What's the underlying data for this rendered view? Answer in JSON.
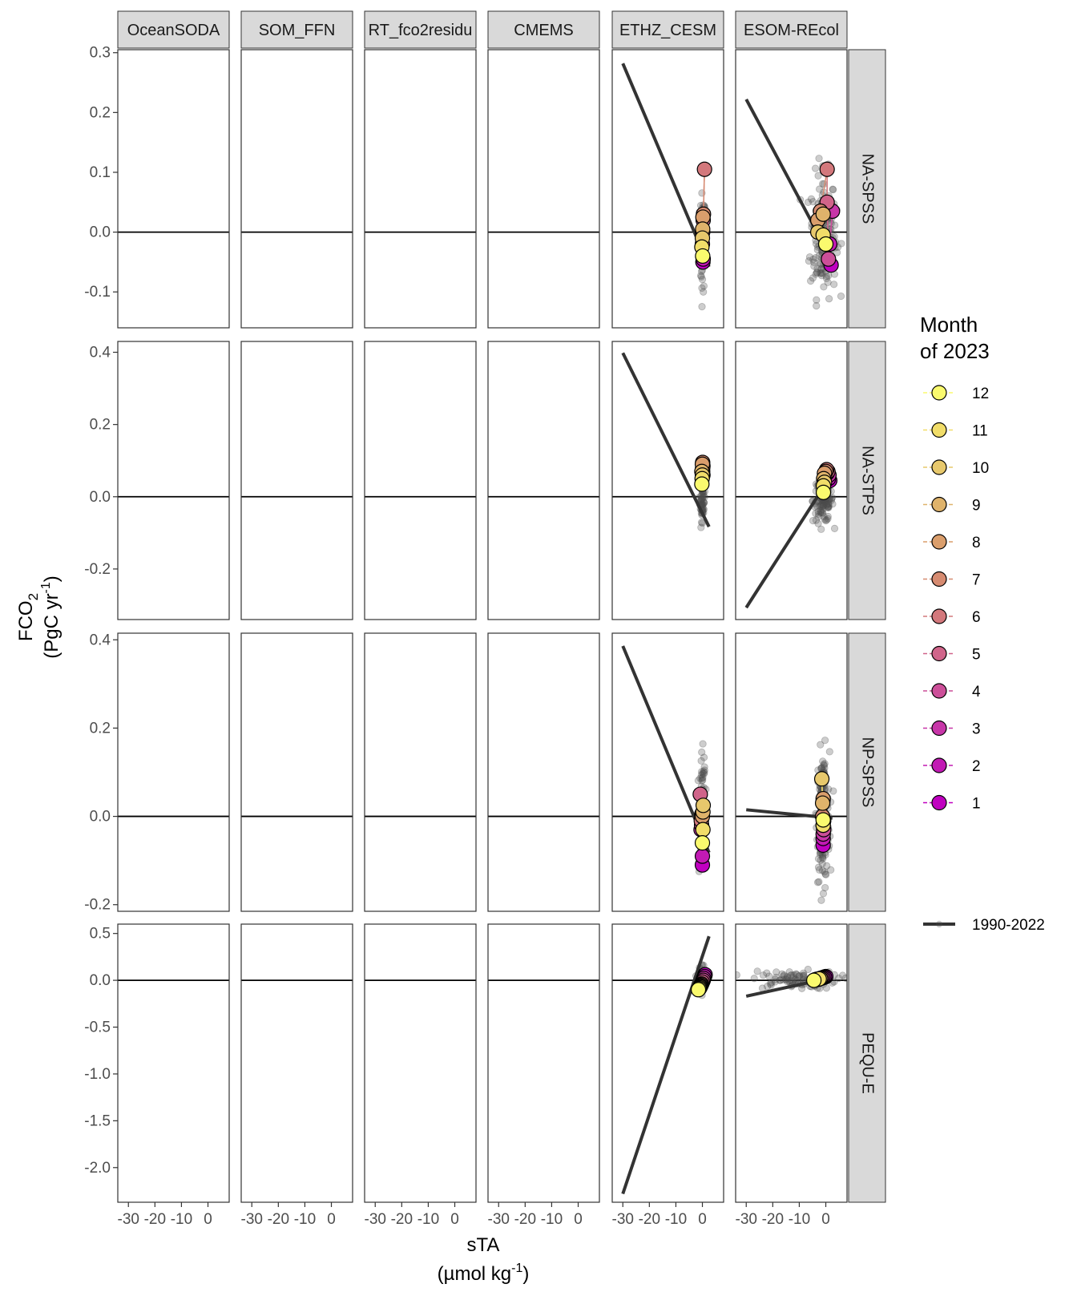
{
  "chart_data": {
    "type": "scatter",
    "facet_columns": [
      "OceanSODA",
      "SOM_FFN",
      "RT_fco2residu",
      "CMEMS",
      "ETHZ_CESM",
      "ESOM-REcol"
    ],
    "facet_rows": [
      "NA-SPSS",
      "NA-STPS",
      "NP-SPSS",
      "PEQU-E"
    ],
    "xlabel": "sTA",
    "xlabel_unit": "(µmol kg",
    "xlabel_unit_sup": "-1",
    "xlabel_unit_end": ")",
    "ylabel": "FCO",
    "ylabel_sub": "2",
    "ylabel_unit": "(PgC yr",
    "ylabel_unit_sup": "-1",
    "ylabel_unit_end": ")",
    "xlim": [
      -34,
      8
    ],
    "x_ticks": [
      -30,
      -20,
      -10,
      0
    ],
    "x_tick_labels": [
      "-30",
      "-20",
      "-10",
      "0"
    ],
    "rows": [
      {
        "ylim": [
          -0.16,
          0.305
        ],
        "y_ticks": [
          -0.1,
          0.0,
          0.1,
          0.2,
          0.3
        ],
        "y_tick_labels": [
          "-0.1",
          "0.0",
          "0.1",
          "0.2",
          "0.3"
        ]
      },
      {
        "ylim": [
          -0.34,
          0.43
        ],
        "y_ticks": [
          -0.2,
          0.0,
          0.2,
          0.4
        ],
        "y_tick_labels": [
          "-0.2",
          "0.0",
          "0.2",
          "0.4"
        ]
      },
      {
        "ylim": [
          -0.215,
          0.415
        ],
        "y_ticks": [
          -0.2,
          0.0,
          0.2,
          0.4
        ],
        "y_tick_labels": [
          "-0.2",
          "0.0",
          "0.2",
          "0.4"
        ]
      },
      {
        "ylim": [
          -2.37,
          0.6
        ],
        "y_ticks": [
          -2.0,
          -1.5,
          -1.0,
          -0.5,
          0.0,
          0.5
        ],
        "y_tick_labels": [
          "-2.0",
          "-1.5",
          "-1.0",
          "-0.5",
          "0.0",
          "0.5"
        ]
      }
    ],
    "legend": {
      "title_line1": "Month",
      "title_line2": "of 2023",
      "months": [
        12,
        11,
        10,
        9,
        8,
        7,
        6,
        5,
        4,
        3,
        2,
        1
      ],
      "month_labels": [
        "12",
        "11",
        "10",
        "9",
        "8",
        "7",
        "6",
        "5",
        "4",
        "3",
        "2",
        "1"
      ],
      "month_colors": {
        "1": "#c000c0",
        "2": "#c21ab4",
        "3": "#c736a8",
        "4": "#cc4f99",
        "5": "#d0648a",
        "6": "#d3787c",
        "7": "#d68b71",
        "8": "#da9e6c",
        "9": "#dfb36b",
        "10": "#e7c86c",
        "11": "#f1dd69",
        "12": "#fafa6e"
      },
      "baseline_label": "1990-2022",
      "placement": "right"
    },
    "colors": {
      "trend_line": "#333333",
      "hist_points": "#4d4d4d",
      "strip_fill": "#d9d9d9",
      "zero_line": "#000000"
    },
    "trend_lines": [
      {
        "row": 0,
        "col": 4,
        "x": [
          -30,
          2.5
        ],
        "y": [
          0.282,
          -0.058
        ]
      },
      {
        "row": 0,
        "col": 5,
        "x": [
          -30,
          2.5
        ],
        "y": [
          0.222,
          -0.048
        ]
      },
      {
        "row": 1,
        "col": 4,
        "x": [
          -30,
          2.5
        ],
        "y": [
          0.398,
          -0.083
        ]
      },
      {
        "row": 1,
        "col": 5,
        "x": [
          -30,
          2.5
        ],
        "y": [
          -0.307,
          0.065
        ]
      },
      {
        "row": 2,
        "col": 4,
        "x": [
          -30,
          2.5
        ],
        "y": [
          0.386,
          -0.082
        ]
      },
      {
        "row": 2,
        "col": 5,
        "x": [
          -30,
          2.5
        ],
        "y": [
          0.015,
          -0.004
        ]
      },
      {
        "row": 3,
        "col": 4,
        "x": [
          -30,
          2.5
        ],
        "y": [
          -2.28,
          0.47
        ]
      },
      {
        "row": 3,
        "col": 5,
        "x": [
          -30,
          2.5
        ],
        "y": [
          -0.17,
          0.03
        ]
      }
    ],
    "historical_points": [
      {
        "row": 0,
        "col": 4,
        "x_center": 0,
        "x_spread": 0.9,
        "y_min": -0.125,
        "y_max": 0.09,
        "count": 60
      },
      {
        "row": 0,
        "col": 5,
        "x_center": -1,
        "x_spread": 4.5,
        "y_min": -0.14,
        "y_max": 0.13,
        "count": 170
      },
      {
        "row": 1,
        "col": 4,
        "x_center": 0,
        "x_spread": 0.9,
        "y_min": -0.085,
        "y_max": 0.065,
        "count": 55
      },
      {
        "row": 1,
        "col": 5,
        "x_center": -1,
        "x_spread": 3.5,
        "y_min": -0.09,
        "y_max": 0.07,
        "count": 120
      },
      {
        "row": 2,
        "col": 4,
        "x_center": 0,
        "x_spread": 1.0,
        "y_min": -0.13,
        "y_max": 0.175,
        "count": 80
      },
      {
        "row": 2,
        "col": 5,
        "x_center": -1,
        "x_spread": 2.2,
        "y_min": -0.19,
        "y_max": 0.19,
        "count": 170
      },
      {
        "row": 3,
        "col": 4,
        "x_center": 0,
        "x_spread": 1.5,
        "y_min": -0.16,
        "y_max": 0.22,
        "count": 60
      },
      {
        "row": 3,
        "col": 5,
        "x_center": -12,
        "x_spread": 15,
        "y_min": -0.12,
        "y_max": 0.13,
        "count": 90
      }
    ],
    "points_2023": [
      {
        "row": 0,
        "col": 4,
        "points": [
          {
            "month": 1,
            "x": 0.2,
            "y": -0.05
          },
          {
            "month": 2,
            "x": 0.3,
            "y": -0.045
          },
          {
            "month": 3,
            "x": 0.0,
            "y": -0.02
          },
          {
            "month": 4,
            "x": 0.1,
            "y": 0.0
          },
          {
            "month": 5,
            "x": 0.3,
            "y": 0.02
          },
          {
            "month": 6,
            "x": 0.8,
            "y": 0.105
          },
          {
            "month": 7,
            "x": 0.4,
            "y": 0.03
          },
          {
            "month": 8,
            "x": 0.2,
            "y": 0.025
          },
          {
            "month": 9,
            "x": 0.1,
            "y": 0.005
          },
          {
            "month": 10,
            "x": 0.0,
            "y": -0.01
          },
          {
            "month": 11,
            "x": -0.2,
            "y": -0.025
          },
          {
            "month": 12,
            "x": 0.1,
            "y": -0.04
          }
        ]
      },
      {
        "row": 0,
        "col": 5,
        "points": [
          {
            "month": 1,
            "x": 2.0,
            "y": -0.055
          },
          {
            "month": 2,
            "x": 1.5,
            "y": -0.02
          },
          {
            "month": 3,
            "x": 2.5,
            "y": 0.035
          },
          {
            "month": 4,
            "x": 1.0,
            "y": -0.045
          },
          {
            "month": 5,
            "x": 0.5,
            "y": 0.05
          },
          {
            "month": 6,
            "x": 0.5,
            "y": 0.105
          },
          {
            "month": 7,
            "x": -2.0,
            "y": 0.035
          },
          {
            "month": 8,
            "x": -3.0,
            "y": 0.02
          },
          {
            "month": 9,
            "x": -1.0,
            "y": 0.03
          },
          {
            "month": 10,
            "x": -3.0,
            "y": 0.0
          },
          {
            "month": 11,
            "x": -1.0,
            "y": -0.005
          },
          {
            "month": 12,
            "x": 0.0,
            "y": -0.02
          }
        ]
      },
      {
        "row": 1,
        "col": 4,
        "points": [
          {
            "month": 1,
            "x": 0.0,
            "y": 0.055
          },
          {
            "month": 2,
            "x": 0.2,
            "y": 0.06
          },
          {
            "month": 3,
            "x": 0.1,
            "y": 0.07
          },
          {
            "month": 4,
            "x": 0.0,
            "y": 0.075
          },
          {
            "month": 5,
            "x": 0.1,
            "y": 0.08
          },
          {
            "month": 6,
            "x": 0.2,
            "y": 0.085
          },
          {
            "month": 7,
            "x": 0.1,
            "y": 0.095
          },
          {
            "month": 8,
            "x": 0.0,
            "y": 0.09
          },
          {
            "month": 9,
            "x": -0.2,
            "y": 0.07
          },
          {
            "month": 10,
            "x": 0.0,
            "y": 0.06
          },
          {
            "month": 11,
            "x": -0.1,
            "y": 0.05
          },
          {
            "month": 12,
            "x": -0.2,
            "y": 0.035
          }
        ]
      },
      {
        "row": 1,
        "col": 5,
        "points": [
          {
            "month": 1,
            "x": 1.5,
            "y": 0.045
          },
          {
            "month": 2,
            "x": 1.0,
            "y": 0.05
          },
          {
            "month": 3,
            "x": 1.2,
            "y": 0.06
          },
          {
            "month": 4,
            "x": 0.5,
            "y": 0.065
          },
          {
            "month": 5,
            "x": 0.8,
            "y": 0.07
          },
          {
            "month": 6,
            "x": 0.3,
            "y": 0.075
          },
          {
            "month": 7,
            "x": 0.0,
            "y": 0.07
          },
          {
            "month": 8,
            "x": -0.5,
            "y": 0.065
          },
          {
            "month": 9,
            "x": -0.8,
            "y": 0.05
          },
          {
            "month": 10,
            "x": -0.5,
            "y": 0.04
          },
          {
            "month": 11,
            "x": -0.9,
            "y": 0.03
          },
          {
            "month": 12,
            "x": -0.9,
            "y": 0.012
          }
        ]
      },
      {
        "row": 2,
        "col": 4,
        "points": [
          {
            "month": 1,
            "x": 0.0,
            "y": -0.11
          },
          {
            "month": 2,
            "x": 0.0,
            "y": -0.09
          },
          {
            "month": 3,
            "x": -0.5,
            "y": -0.03
          },
          {
            "month": 4,
            "x": -0.3,
            "y": -0.02
          },
          {
            "month": 5,
            "x": -0.8,
            "y": 0.05
          },
          {
            "month": 6,
            "x": -0.4,
            "y": -0.01
          },
          {
            "month": 7,
            "x": -0.2,
            "y": 0.005
          },
          {
            "month": 8,
            "x": 0.0,
            "y": 0.0
          },
          {
            "month": 9,
            "x": 0.2,
            "y": 0.01
          },
          {
            "month": 10,
            "x": 0.3,
            "y": 0.025
          },
          {
            "month": 11,
            "x": 0.2,
            "y": -0.03
          },
          {
            "month": 12,
            "x": 0.0,
            "y": -0.06
          }
        ]
      },
      {
        "row": 2,
        "col": 5,
        "points": [
          {
            "month": 1,
            "x": -1.0,
            "y": -0.065
          },
          {
            "month": 2,
            "x": -1.0,
            "y": -0.05
          },
          {
            "month": 3,
            "x": -1.0,
            "y": -0.04
          },
          {
            "month": 4,
            "x": -0.8,
            "y": -0.03
          },
          {
            "month": 5,
            "x": -1.0,
            "y": -0.02
          },
          {
            "month": 6,
            "x": -0.8,
            "y": -0.01
          },
          {
            "month": 7,
            "x": -1.2,
            "y": 0.0
          },
          {
            "month": 8,
            "x": -1.0,
            "y": 0.04
          },
          {
            "month": 9,
            "x": -1.2,
            "y": 0.03
          },
          {
            "month": 10,
            "x": -1.5,
            "y": 0.085
          },
          {
            "month": 11,
            "x": -1.0,
            "y": -0.02
          },
          {
            "month": 12,
            "x": -1.0,
            "y": -0.008
          }
        ]
      },
      {
        "row": 3,
        "col": 4,
        "points": [
          {
            "month": 1,
            "x": 1.0,
            "y": 0.06
          },
          {
            "month": 2,
            "x": 0.8,
            "y": 0.04
          },
          {
            "month": 3,
            "x": 0.5,
            "y": 0.02
          },
          {
            "month": 4,
            "x": 0.3,
            "y": 0.0
          },
          {
            "month": 5,
            "x": 0.0,
            "y": -0.02
          },
          {
            "month": 6,
            "x": -0.3,
            "y": -0.04
          },
          {
            "month": 7,
            "x": -0.5,
            "y": -0.05
          },
          {
            "month": 8,
            "x": -0.7,
            "y": -0.06
          },
          {
            "month": 9,
            "x": -0.8,
            "y": -0.07
          },
          {
            "month": 10,
            "x": -1.0,
            "y": -0.08
          },
          {
            "month": 11,
            "x": -1.2,
            "y": -0.09
          },
          {
            "month": 12,
            "x": -1.5,
            "y": -0.1
          }
        ]
      },
      {
        "row": 3,
        "col": 5,
        "points": [
          {
            "month": 1,
            "x": 0.0,
            "y": 0.04
          },
          {
            "month": 2,
            "x": -0.5,
            "y": 0.035
          },
          {
            "month": 3,
            "x": -1.0,
            "y": 0.03
          },
          {
            "month": 4,
            "x": -1.5,
            "y": 0.025
          },
          {
            "month": 5,
            "x": -2.0,
            "y": 0.02
          },
          {
            "month": 6,
            "x": -2.5,
            "y": 0.015
          },
          {
            "month": 7,
            "x": -3.0,
            "y": 0.01
          },
          {
            "month": 8,
            "x": -2.0,
            "y": 0.02
          },
          {
            "month": 9,
            "x": -3.5,
            "y": 0.01
          },
          {
            "month": 10,
            "x": -4.0,
            "y": 0.005
          },
          {
            "month": 11,
            "x": -2.5,
            "y": 0.015
          },
          {
            "month": 12,
            "x": -4.5,
            "y": 0.0
          }
        ]
      }
    ]
  }
}
